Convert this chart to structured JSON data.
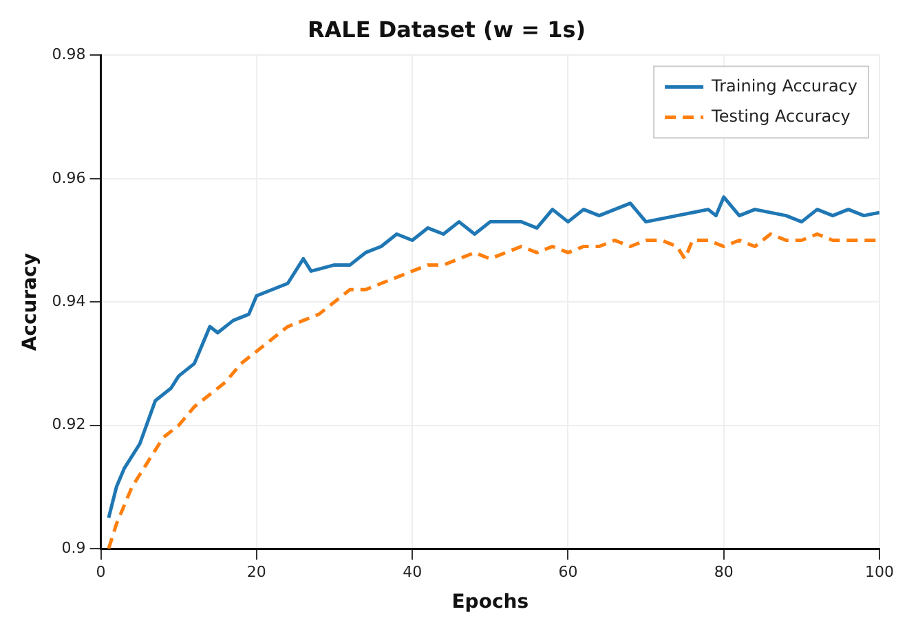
{
  "chart_data": {
    "type": "line",
    "title": "RALE Dataset (w = 1s)",
    "xlabel": "Epochs",
    "ylabel": "Accuracy",
    "xlim": [
      0,
      100
    ],
    "xticks": [
      0,
      20,
      40,
      60,
      80,
      100
    ],
    "ylim": [
      0.9,
      0.98
    ],
    "yticks": [
      0.9,
      0.92,
      0.94,
      0.96,
      0.98
    ],
    "grid": true,
    "legend": "top right",
    "marker": "none",
    "series": [
      {
        "name": "Training Accuracy",
        "color": "#1f77b4",
        "line_style": "solid",
        "x": [
          1,
          2,
          3,
          5,
          7,
          9,
          10,
          12,
          14,
          15,
          17,
          19,
          20,
          22,
          24,
          26,
          27,
          30,
          32,
          34,
          36,
          38,
          40,
          42,
          44,
          46,
          48,
          50,
          54,
          56,
          58,
          60,
          62,
          64,
          66,
          68,
          70,
          74,
          78,
          79,
          80,
          82,
          84,
          88,
          90,
          92,
          94,
          96,
          98,
          100
        ],
        "values": [
          0.905,
          0.91,
          0.913,
          0.917,
          0.924,
          0.926,
          0.928,
          0.93,
          0.936,
          0.935,
          0.937,
          0.938,
          0.941,
          0.942,
          0.943,
          0.947,
          0.945,
          0.946,
          0.946,
          0.948,
          0.949,
          0.951,
          0.95,
          0.952,
          0.951,
          0.953,
          0.951,
          0.953,
          0.953,
          0.952,
          0.955,
          0.953,
          0.955,
          0.954,
          0.955,
          0.956,
          0.953,
          0.954,
          0.955,
          0.954,
          0.957,
          0.954,
          0.955,
          0.954,
          0.953,
          0.955,
          0.954,
          0.955,
          0.954,
          0.9545
        ]
      },
      {
        "name": "Testing Accuracy",
        "color": "#ff7f0e",
        "line_style": "dashed",
        "x": [
          1,
          2,
          4,
          6,
          8,
          10,
          12,
          14,
          16,
          18,
          20,
          22,
          24,
          26,
          28,
          30,
          32,
          34,
          36,
          38,
          40,
          42,
          44,
          46,
          48,
          50,
          52,
          54,
          56,
          58,
          60,
          62,
          64,
          66,
          68,
          70,
          72,
          74,
          75,
          76,
          78,
          80,
          82,
          84,
          86,
          88,
          90,
          92,
          94,
          96,
          98,
          100
        ],
        "values": [
          0.9,
          0.904,
          0.91,
          0.914,
          0.918,
          0.92,
          0.923,
          0.925,
          0.927,
          0.93,
          0.932,
          0.934,
          0.936,
          0.937,
          0.938,
          0.94,
          0.942,
          0.942,
          0.943,
          0.944,
          0.945,
          0.946,
          0.946,
          0.947,
          0.948,
          0.947,
          0.948,
          0.949,
          0.948,
          0.949,
          0.948,
          0.949,
          0.949,
          0.95,
          0.949,
          0.95,
          0.95,
          0.949,
          0.947,
          0.95,
          0.95,
          0.949,
          0.95,
          0.949,
          0.951,
          0.95,
          0.95,
          0.951,
          0.95,
          0.95,
          0.95,
          0.95
        ]
      }
    ]
  }
}
